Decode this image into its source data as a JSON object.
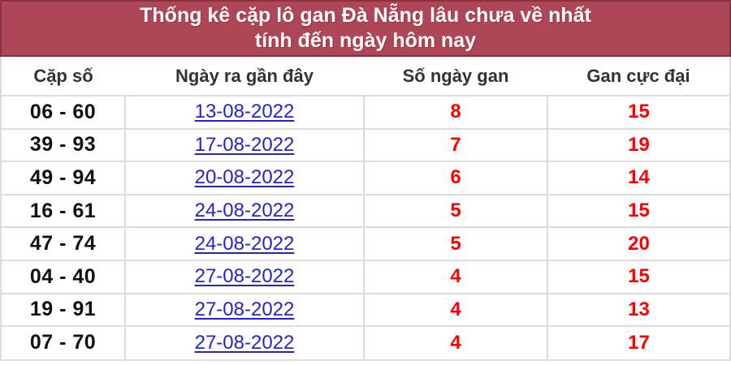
{
  "title": {
    "line1": "Thống kê cặp lô gan Đà Nẵng lâu chưa về nhất",
    "line2": "tính đến ngày hôm nay"
  },
  "table": {
    "columns": [
      "Cặp số",
      "Ngày ra gần đây",
      "Số ngày gan",
      "Gan cực đại"
    ],
    "rows": [
      {
        "pair": "06 - 60",
        "date": "13-08-2022",
        "gan_days": "8",
        "max_gan": "15"
      },
      {
        "pair": "39 - 93",
        "date": "17-08-2022",
        "gan_days": "7",
        "max_gan": "19"
      },
      {
        "pair": "49 - 94",
        "date": "20-08-2022",
        "gan_days": "6",
        "max_gan": "14"
      },
      {
        "pair": "16 - 61",
        "date": "24-08-2022",
        "gan_days": "5",
        "max_gan": "15"
      },
      {
        "pair": "47 - 74",
        "date": "24-08-2022",
        "gan_days": "5",
        "max_gan": "20"
      },
      {
        "pair": "04 - 40",
        "date": "27-08-2022",
        "gan_days": "4",
        "max_gan": "15"
      },
      {
        "pair": "19 - 91",
        "date": "27-08-2022",
        "gan_days": "4",
        "max_gan": "13"
      },
      {
        "pair": "07 - 70",
        "date": "27-08-2022",
        "gan_days": "4",
        "max_gan": "17"
      }
    ]
  },
  "colors": {
    "title_bg": "#ad4758",
    "title_border": "#8c2f3f",
    "title_text": "#ffffff",
    "header_text": "#333333",
    "pair_text": "#111111",
    "link_color": "#2424cf",
    "accent_red": "#fe0000",
    "grid_border": "#dcdcdc"
  }
}
